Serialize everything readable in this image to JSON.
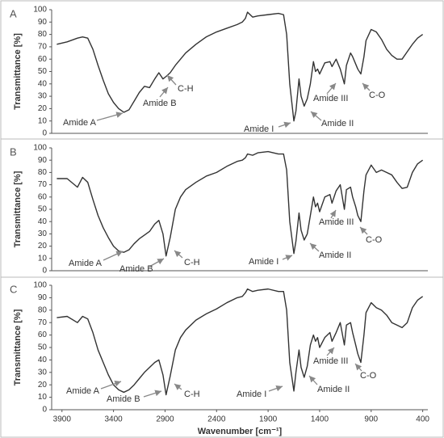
{
  "chart_data": [
    {
      "type": "line",
      "panel_label": "A",
      "ylabel": "Transmittance [%]",
      "x": [
        3950,
        3850,
        3750,
        3700,
        3650,
        3600,
        3550,
        3500,
        3450,
        3400,
        3350,
        3300,
        3250,
        3200,
        3150,
        3100,
        3050,
        3000,
        2960,
        2920,
        2890,
        2850,
        2800,
        2750,
        2700,
        2600,
        2500,
        2400,
        2300,
        2200,
        2150,
        2120,
        2100,
        2050,
        2000,
        1900,
        1800,
        1750,
        1720,
        1690,
        1650,
        1630,
        1600,
        1580,
        1550,
        1520,
        1490,
        1460,
        1440,
        1420,
        1400,
        1350,
        1300,
        1280,
        1240,
        1200,
        1160,
        1140,
        1100,
        1080,
        1050,
        1030,
        1000,
        970,
        950,
        900,
        850,
        800,
        750,
        700,
        650,
        600,
        550,
        500,
        450,
        400
      ],
      "values": [
        72,
        74,
        77,
        78,
        77,
        68,
        55,
        43,
        32,
        25,
        20,
        17,
        19,
        26,
        33,
        38,
        37,
        44,
        49,
        44,
        46,
        49,
        55,
        60,
        65,
        72,
        78,
        82,
        85,
        88,
        90,
        93,
        98,
        94,
        95,
        96,
        97,
        96,
        80,
        40,
        10,
        18,
        44,
        30,
        22,
        28,
        40,
        58,
        50,
        52,
        48,
        57,
        58,
        54,
        60,
        52,
        40,
        55,
        65,
        62,
        56,
        52,
        48,
        62,
        75,
        84,
        82,
        76,
        68,
        63,
        60,
        60,
        66,
        72,
        77,
        80
      ],
      "color": "#333333",
      "xlim": [
        4000,
        350
      ],
      "ylim": [
        0,
        100
      ],
      "yticks": [
        0,
        10,
        20,
        30,
        40,
        50,
        60,
        70,
        80,
        90,
        100
      ],
      "annotations": [
        "Amide A",
        "Amide B",
        "C-H",
        "Amide I",
        "Amide II",
        "Amide III",
        "C-O"
      ]
    },
    {
      "type": "line",
      "panel_label": "B",
      "ylabel": "Transmittance [%]",
      "x": [
        3950,
        3850,
        3750,
        3700,
        3650,
        3600,
        3550,
        3500,
        3450,
        3400,
        3350,
        3300,
        3250,
        3200,
        3150,
        3100,
        3050,
        3000,
        2960,
        2920,
        2890,
        2850,
        2800,
        2750,
        2700,
        2600,
        2500,
        2400,
        2300,
        2200,
        2150,
        2120,
        2100,
        2050,
        2000,
        1900,
        1800,
        1750,
        1720,
        1690,
        1650,
        1630,
        1600,
        1580,
        1550,
        1520,
        1490,
        1460,
        1440,
        1420,
        1400,
        1350,
        1300,
        1280,
        1240,
        1200,
        1160,
        1140,
        1100,
        1080,
        1050,
        1030,
        1000,
        970,
        950,
        900,
        850,
        800,
        750,
        700,
        650,
        600,
        550,
        500,
        450,
        400
      ],
      "values": [
        75,
        75,
        68,
        76,
        72,
        58,
        45,
        35,
        27,
        20,
        16,
        15,
        17,
        22,
        26,
        29,
        32,
        38,
        41,
        30,
        12,
        27,
        50,
        60,
        66,
        72,
        77,
        80,
        85,
        89,
        90,
        92,
        95,
        94,
        96,
        97,
        95,
        95,
        82,
        40,
        14,
        24,
        47,
        33,
        25,
        30,
        45,
        60,
        52,
        55,
        48,
        60,
        62,
        55,
        65,
        70,
        50,
        66,
        68,
        60,
        52,
        45,
        40,
        65,
        78,
        86,
        80,
        82,
        80,
        78,
        72,
        67,
        68,
        80,
        87,
        90
      ],
      "color": "#333333",
      "xlim": [
        4000,
        350
      ],
      "ylim": [
        0,
        100
      ],
      "yticks": [
        0,
        10,
        20,
        30,
        40,
        50,
        60,
        70,
        80,
        90,
        100
      ],
      "annotations": [
        "Amide A",
        "Amide B",
        "C-H",
        "Amide I",
        "Amide II",
        "Amide III",
        "C-O"
      ]
    },
    {
      "type": "line",
      "panel_label": "C",
      "ylabel": "Transmittance [%]",
      "xlabel": "Wavenumber [cm⁻¹]",
      "x": [
        3950,
        3850,
        3750,
        3700,
        3650,
        3600,
        3550,
        3500,
        3450,
        3400,
        3350,
        3300,
        3250,
        3200,
        3150,
        3100,
        3050,
        3000,
        2960,
        2920,
        2890,
        2850,
        2800,
        2750,
        2700,
        2600,
        2500,
        2400,
        2300,
        2200,
        2150,
        2120,
        2100,
        2050,
        2000,
        1900,
        1800,
        1750,
        1720,
        1690,
        1650,
        1630,
        1600,
        1580,
        1550,
        1520,
        1490,
        1460,
        1440,
        1420,
        1400,
        1350,
        1300,
        1280,
        1240,
        1200,
        1160,
        1140,
        1100,
        1080,
        1050,
        1030,
        1000,
        970,
        950,
        900,
        850,
        800,
        750,
        700,
        650,
        600,
        550,
        500,
        450,
        400
      ],
      "values": [
        74,
        75,
        70,
        75,
        73,
        62,
        48,
        38,
        28,
        20,
        16,
        14,
        16,
        20,
        25,
        30,
        34,
        38,
        40,
        28,
        12,
        27,
        48,
        58,
        64,
        72,
        77,
        81,
        86,
        90,
        91,
        94,
        97,
        95,
        96,
        97,
        95,
        95,
        80,
        38,
        15,
        30,
        48,
        34,
        26,
        35,
        52,
        60,
        55,
        58,
        50,
        58,
        62,
        55,
        62,
        70,
        52,
        68,
        70,
        62,
        52,
        45,
        38,
        60,
        78,
        86,
        82,
        80,
        76,
        70,
        68,
        66,
        70,
        82,
        88,
        91
      ],
      "color": "#333333",
      "xlim": [
        4000,
        350
      ],
      "ylim": [
        0,
        100
      ],
      "yticks": [
        0,
        10,
        20,
        30,
        40,
        50,
        60,
        70,
        80,
        90,
        100
      ],
      "xticks": [
        3900,
        3400,
        2900,
        2400,
        1900,
        1400,
        900,
        400
      ],
      "annotations": [
        "Amide A",
        "Amide B",
        "C-H",
        "Amide I",
        "Amide II",
        "Amide III",
        "C-O"
      ]
    }
  ]
}
